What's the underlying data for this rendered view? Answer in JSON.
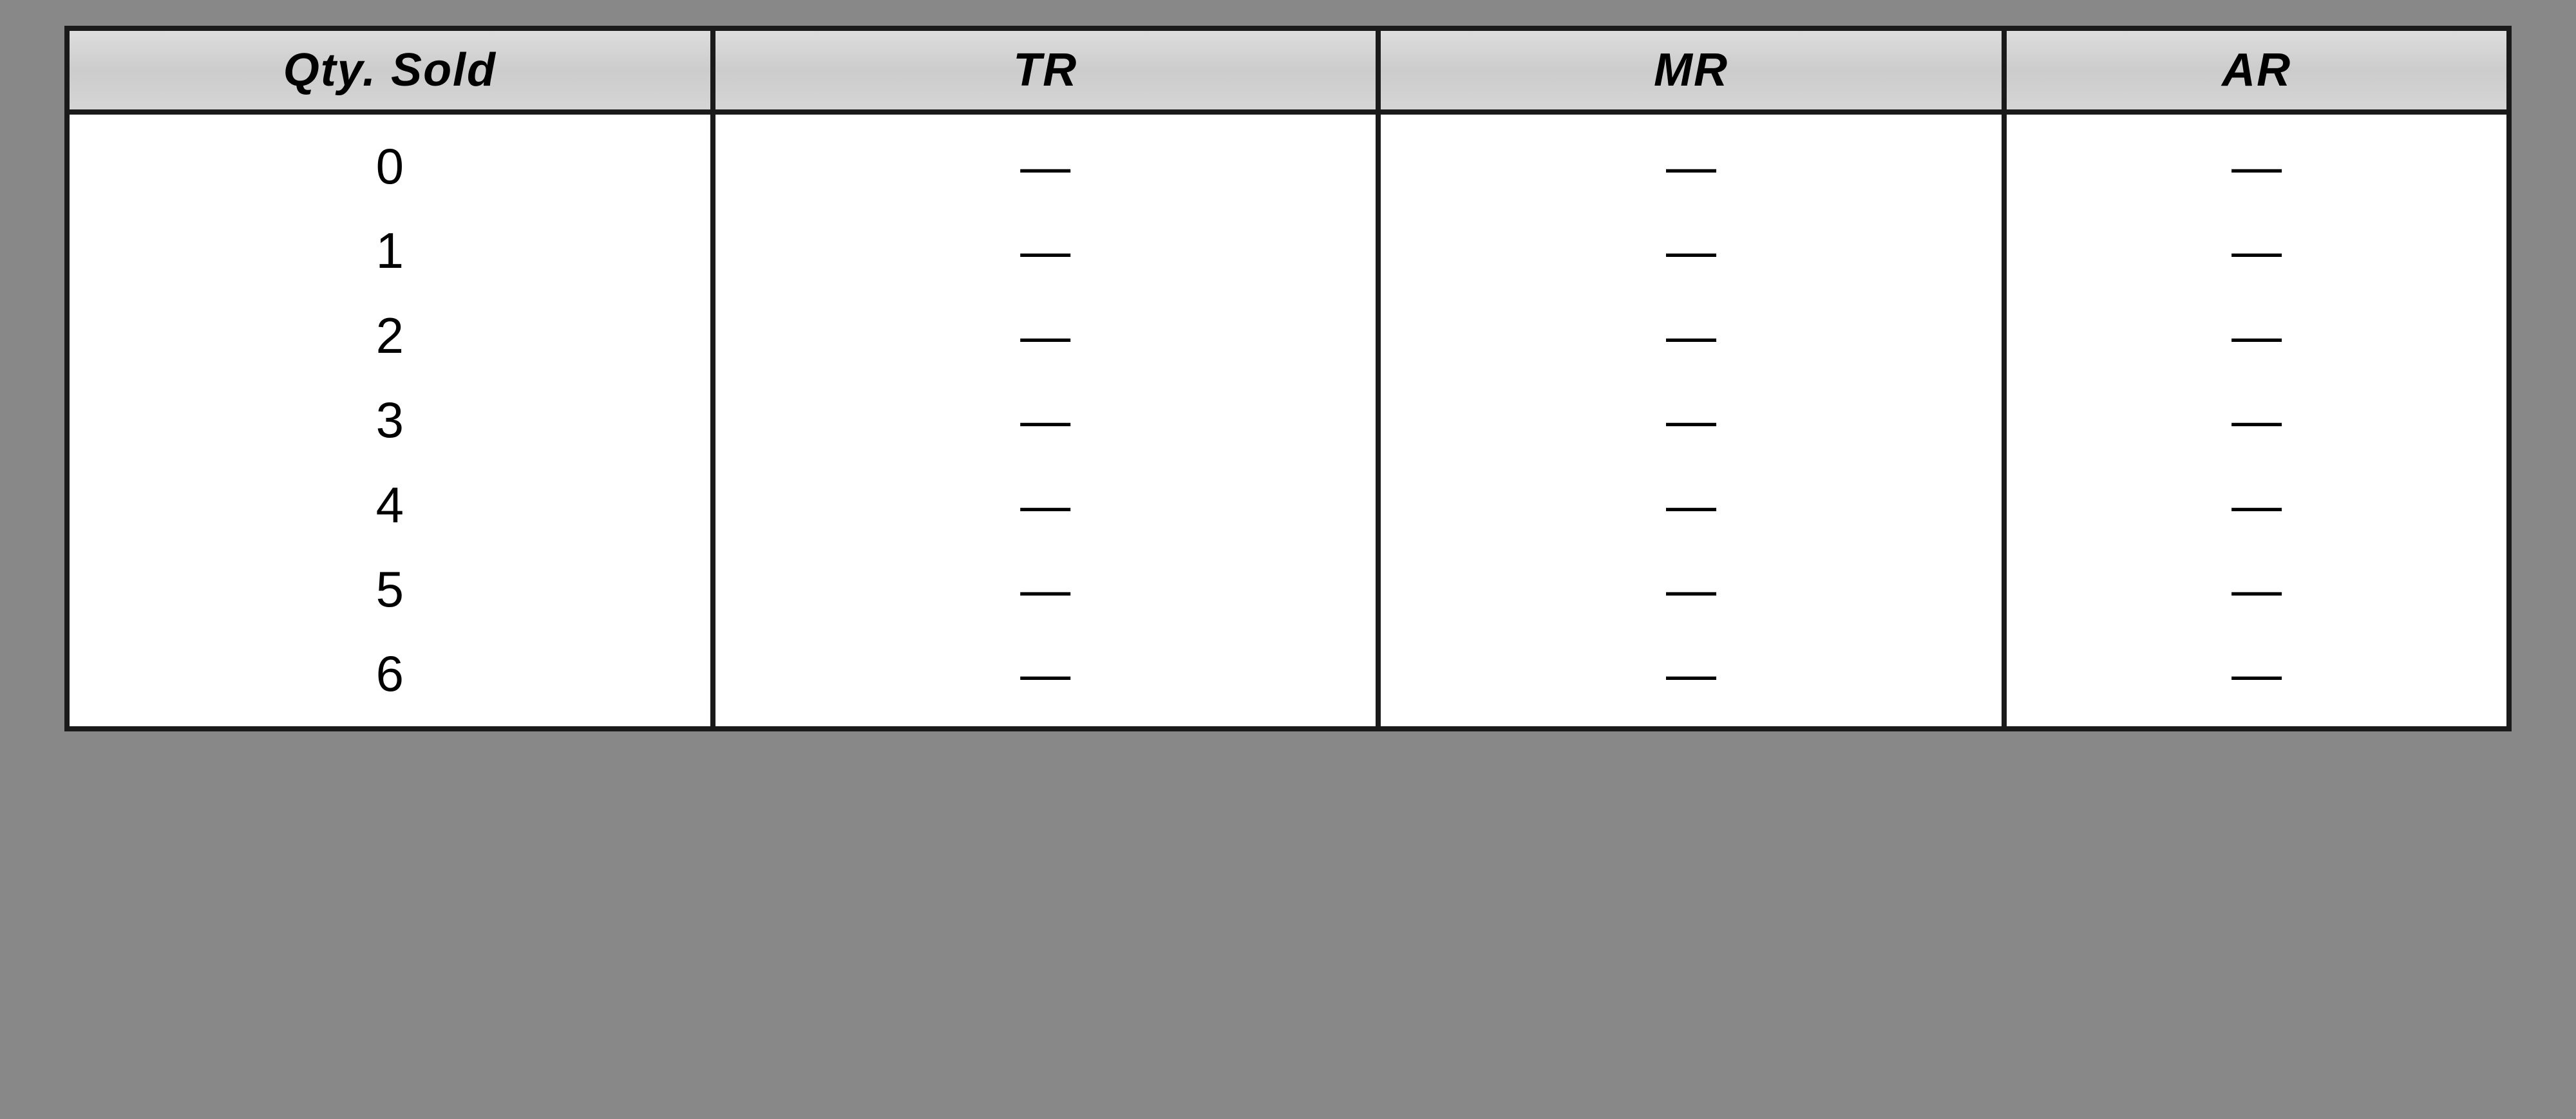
{
  "table": {
    "type": "table",
    "border_color": "#1a1a1a",
    "border_width": 8,
    "header_bg": "#d0d0d0",
    "body_bg": "#ffffff",
    "font_family_header": "Comic Sans MS",
    "font_style_header": "italic",
    "header_fontsize": 72,
    "cell_fontsize": 78,
    "columns": [
      {
        "key": "qty",
        "label": "Qty. Sold",
        "width_pct": 26.5
      },
      {
        "key": "tr",
        "label": "TR",
        "width_pct": 27.3
      },
      {
        "key": "mr",
        "label": "MR",
        "width_pct": 25.7
      },
      {
        "key": "ar",
        "label": "AR",
        "width_pct": 20.5
      }
    ],
    "rows": [
      {
        "qty": "0",
        "tr": "—",
        "mr": "—",
        "ar": "—"
      },
      {
        "qty": "1",
        "tr": "—",
        "mr": "—",
        "ar": "—"
      },
      {
        "qty": "2",
        "tr": "—",
        "mr": "—",
        "ar": "—"
      },
      {
        "qty": "3",
        "tr": "—",
        "mr": "—",
        "ar": "—"
      },
      {
        "qty": "4",
        "tr": "—",
        "mr": "—",
        "ar": "—"
      },
      {
        "qty": "5",
        "tr": "—",
        "mr": "—",
        "ar": "—"
      },
      {
        "qty": "6",
        "tr": "—",
        "mr": "—",
        "ar": "—"
      }
    ]
  }
}
